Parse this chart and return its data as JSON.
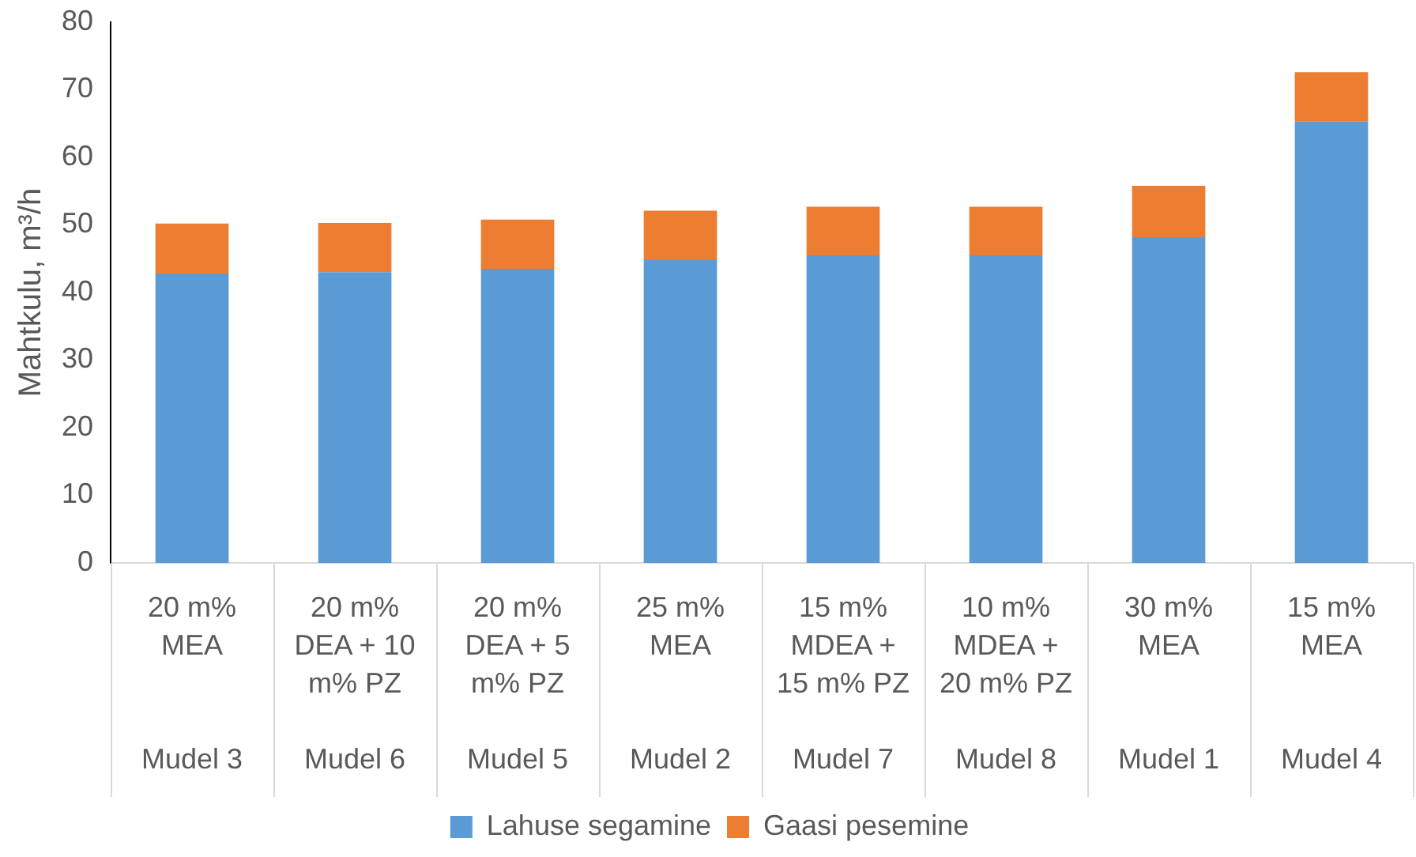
{
  "chart_data": {
    "type": "bar",
    "stacked": true,
    "ylabel": "Mahtkulu, m³/h",
    "categories": [
      "20 m% MEA",
      "20 m% DEA + 10 m% PZ",
      "20 m% DEA + 5 m% PZ",
      "25 m% MEA",
      "15 m% MDEA + 15 m% PZ",
      "10 m% MDEA + 20 m% PZ",
      "30 m% MEA",
      "15 m% MEA"
    ],
    "series": [
      {
        "name": "Lahuse segamine",
        "color": "#5b9bd5",
        "values": [
          42.8,
          43,
          43.5,
          44.8,
          45.5,
          45.5,
          48.2,
          65.3
        ]
      },
      {
        "name": "Gaasi pesemine",
        "color": "#ed7d31",
        "values": [
          7.4,
          7.3,
          7.3,
          7.3,
          7.2,
          7.2,
          7.6,
          7.3
        ]
      }
    ],
    "ylim": [
      0,
      80
    ],
    "yticks": [
      0,
      10,
      20,
      30,
      40,
      50,
      60,
      70,
      80
    ],
    "grid": false,
    "legend": "bottom",
    "annotations": [
      "Mudel 3",
      "Mudel 6",
      "Mudel 5",
      "Mudel 2",
      "Mudel 7",
      "Mudel 8",
      "Mudel 1",
      "Mudel 4"
    ]
  }
}
